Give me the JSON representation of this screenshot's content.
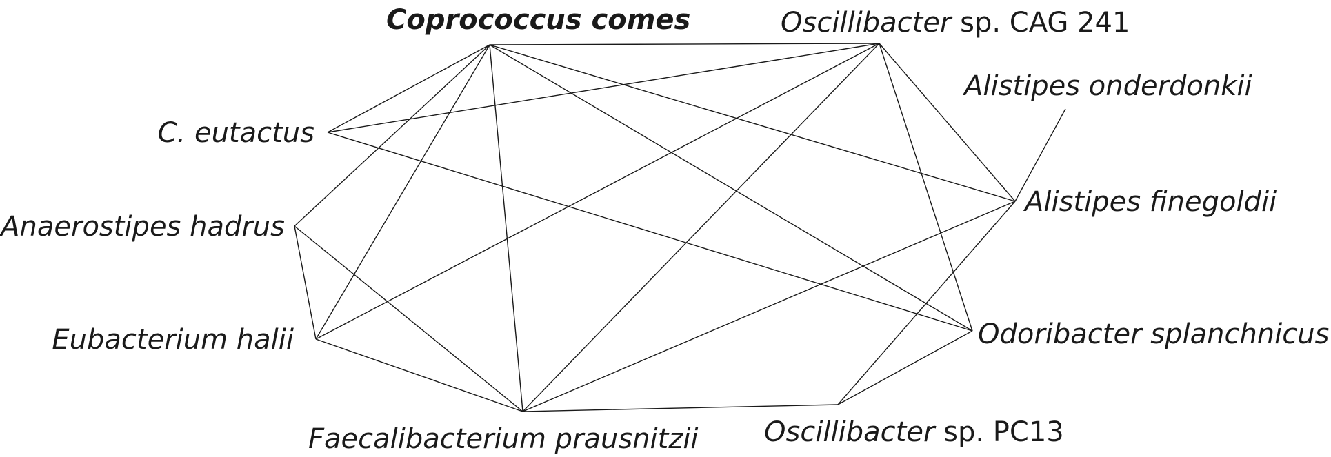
{
  "nodes": [
    {
      "id": "coprococcus",
      "parts": [
        {
          "text": "Coprococcus comes",
          "style": "bold-italic"
        }
      ]
    },
    {
      "id": "osc241",
      "parts": [
        {
          "text": "Oscillibacter",
          "style": "italic"
        },
        {
          "text": " sp. CAG 241",
          "style": "normal"
        }
      ]
    },
    {
      "id": "onderdonkii",
      "parts": [
        {
          "text": "Alistipes onderdonkii",
          "style": "italic"
        }
      ]
    },
    {
      "id": "eutactus",
      "parts": [
        {
          "text": "C. eutactus",
          "style": "italic"
        }
      ]
    },
    {
      "id": "finegoldii",
      "parts": [
        {
          "text": "Alistipes finegoldii",
          "style": "italic"
        }
      ]
    },
    {
      "id": "hadrus",
      "parts": [
        {
          "text": "Anaerostipes hadrus",
          "style": "italic"
        }
      ]
    },
    {
      "id": "halii",
      "parts": [
        {
          "text": "Eubacterium halii",
          "style": "italic"
        }
      ]
    },
    {
      "id": "odoribacter",
      "parts": [
        {
          "text": "Odoribacter splanchnicus",
          "style": "italic"
        }
      ]
    },
    {
      "id": "faecali",
      "parts": [
        {
          "text": "Faecalibacterium prausnitzii",
          "style": "italic"
        }
      ]
    },
    {
      "id": "oscPC13",
      "parts": [
        {
          "text": "Oscillibacter",
          "style": "italic"
        },
        {
          "text": " sp. PC13",
          "style": "normal"
        }
      ]
    }
  ],
  "edges": [
    [
      "coprococcus",
      "osc241"
    ],
    [
      "coprococcus",
      "eutactus"
    ],
    [
      "coprococcus",
      "hadrus"
    ],
    [
      "coprococcus",
      "halii"
    ],
    [
      "coprococcus",
      "faecali"
    ],
    [
      "coprococcus",
      "finegoldii"
    ],
    [
      "coprococcus",
      "odoribacter"
    ],
    [
      "osc241",
      "eutactus"
    ],
    [
      "osc241",
      "halii"
    ],
    [
      "osc241",
      "faecali"
    ],
    [
      "osc241",
      "finegoldii"
    ],
    [
      "osc241",
      "odoribacter"
    ],
    [
      "eutactus",
      "odoribacter"
    ],
    [
      "hadrus",
      "halii"
    ],
    [
      "hadrus",
      "faecali"
    ],
    [
      "halii",
      "faecali"
    ],
    [
      "faecali",
      "finegoldii"
    ],
    [
      "faecali",
      "oscPC13"
    ],
    [
      "oscPC13",
      "odoribacter"
    ],
    [
      "oscPC13",
      "finegoldii"
    ],
    [
      "finegoldii",
      "onderdonkii"
    ]
  ]
}
